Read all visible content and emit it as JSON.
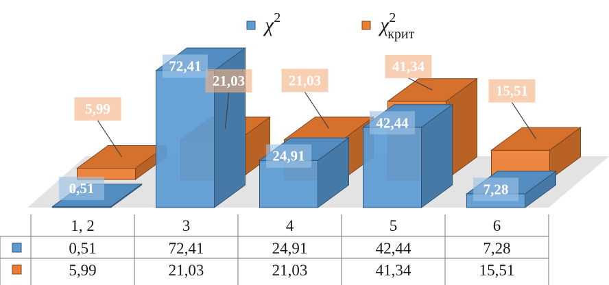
{
  "chart_data": {
    "type": "bar",
    "style": "3d-clustered-column",
    "categories": [
      "1, 2",
      "3",
      "4",
      "5",
      "6"
    ],
    "series": [
      {
        "name": "χ2",
        "name_base": "χ",
        "name_sup": "2",
        "name_sub": "",
        "color": "#5b9bd5",
        "values": [
          0.51,
          72.41,
          24.91,
          42.44,
          7.28
        ],
        "labels": [
          "0,51",
          "72,41",
          "24,91",
          "42,44",
          "7,28"
        ]
      },
      {
        "name": "χ2крит",
        "name_base": "χ",
        "name_sup": "2",
        "name_sub": "крит",
        "color": "#ed7d31",
        "values": [
          5.99,
          21.03,
          21.03,
          41.34,
          15.51
        ],
        "labels": [
          "5,99",
          "21,03",
          "21,03",
          "41,34",
          "15,51"
        ]
      }
    ],
    "title": "",
    "xlabel": "",
    "ylabel": "",
    "ylim": [
      0,
      72.41
    ],
    "legend_position": "top",
    "data_table": true,
    "grid": false
  }
}
